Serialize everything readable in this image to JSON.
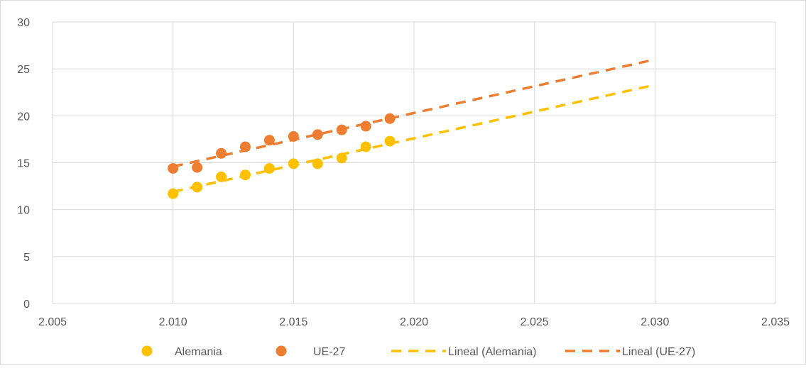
{
  "chart_data": {
    "type": "scatter",
    "title": "",
    "xlabel": "",
    "ylabel": "",
    "xlim": [
      2.005,
      2.035
    ],
    "ylim": [
      0,
      30
    ],
    "x_ticks": [
      2.005,
      2.01,
      2.015,
      2.02,
      2.025,
      2.03,
      2.035
    ],
    "x_tick_labels": [
      "2.005",
      "2.010",
      "2.015",
      "2.020",
      "2.025",
      "2.030",
      "2.035"
    ],
    "y_ticks": [
      0,
      5,
      10,
      15,
      20,
      25,
      30
    ],
    "y_tick_labels": [
      "0",
      "5",
      "10",
      "15",
      "20",
      "25",
      "30"
    ],
    "grid": true,
    "legend_position": "bottom",
    "series": [
      {
        "name": "Alemania",
        "color": "#FFC000",
        "x": [
          2.01,
          2.011,
          2.012,
          2.013,
          2.014,
          2.015,
          2.016,
          2.017,
          2.018,
          2.019
        ],
        "y": [
          11.7,
          12.4,
          13.5,
          13.7,
          14.4,
          14.9,
          14.9,
          15.5,
          16.7,
          17.3
        ]
      },
      {
        "name": "UE-27",
        "color": "#ED7D31",
        "x": [
          2.01,
          2.011,
          2.012,
          2.013,
          2.014,
          2.015,
          2.016,
          2.017,
          2.018,
          2.019
        ],
        "y": [
          14.4,
          14.5,
          16.0,
          16.7,
          17.4,
          17.8,
          18.0,
          18.5,
          18.9,
          19.7
        ]
      }
    ],
    "trendlines": [
      {
        "name": "Lineal (Alemania)",
        "type": "linear",
        "color": "#FFC000",
        "x": [
          2.01,
          2.03
        ],
        "y": [
          11.9,
          23.3
        ]
      },
      {
        "name": "Lineal (UE-27)",
        "type": "linear",
        "color": "#ED7D31",
        "x": [
          2.01,
          2.03
        ],
        "y": [
          14.6,
          26.0
        ]
      }
    ]
  }
}
